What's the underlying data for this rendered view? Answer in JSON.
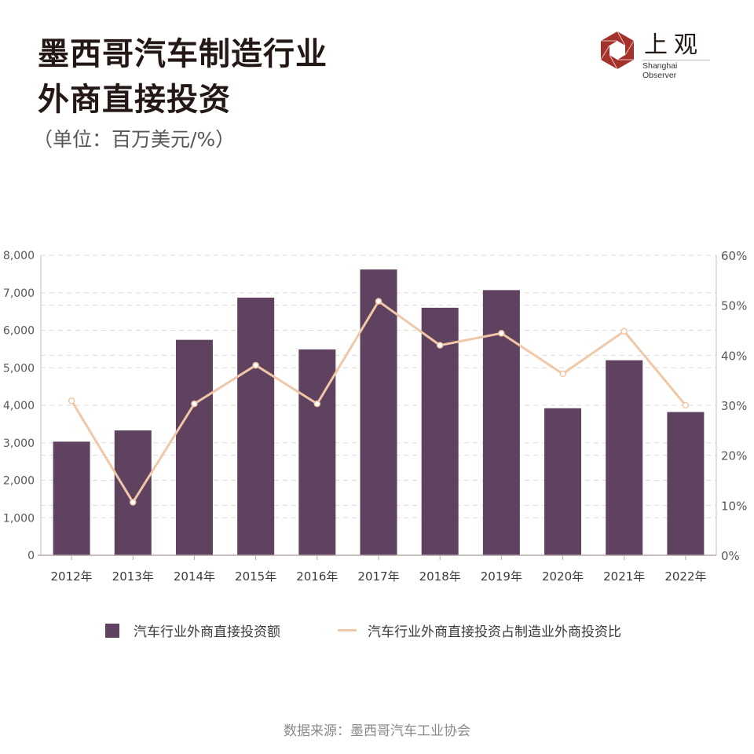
{
  "title_line1": "墨西哥汽车制造行业",
  "title_line2": "外商直接投资",
  "unit": "（单位：百万美元/%）",
  "logo": {
    "cn": "上观",
    "en": "Shanghai Observer",
    "color": "#a5312b"
  },
  "source": "数据来源：墨西哥汽车工业协会",
  "chart_data": {
    "type": "bar+line",
    "categories": [
      "2012年",
      "2013年",
      "2014年",
      "2015年",
      "2016年",
      "2017年",
      "2018年",
      "2019年",
      "2020年",
      "2021年",
      "2022年"
    ],
    "series": [
      {
        "name": "汽车行业外商直接投资额",
        "type": "bar",
        "axis": "left",
        "color": "#5f4160",
        "values": [
          3030,
          3330,
          5745,
          6870,
          5490,
          7620,
          6600,
          7070,
          3920,
          5200,
          3820
        ]
      },
      {
        "name": "汽车行业外商直接投资占制造业外商投资比",
        "type": "line",
        "axis": "right",
        "color": "#f0c8a8",
        "values": [
          30.9,
          10.6,
          30.3,
          38.0,
          30.3,
          50.8,
          42.0,
          44.4,
          36.3,
          44.8,
          30.0
        ]
      }
    ],
    "left_axis": {
      "ylim": [
        0,
        8000
      ],
      "ticks": [
        "0",
        "1,000",
        "2,000",
        "3,000",
        "4,000",
        "5,000",
        "6,000",
        "7,000",
        "8,000"
      ]
    },
    "right_axis": {
      "ylim": [
        0,
        60
      ],
      "ticks": [
        "0%",
        "10%",
        "20%",
        "30%",
        "40%",
        "50%",
        "60%"
      ]
    },
    "grid": true,
    "legend": "bottom"
  }
}
